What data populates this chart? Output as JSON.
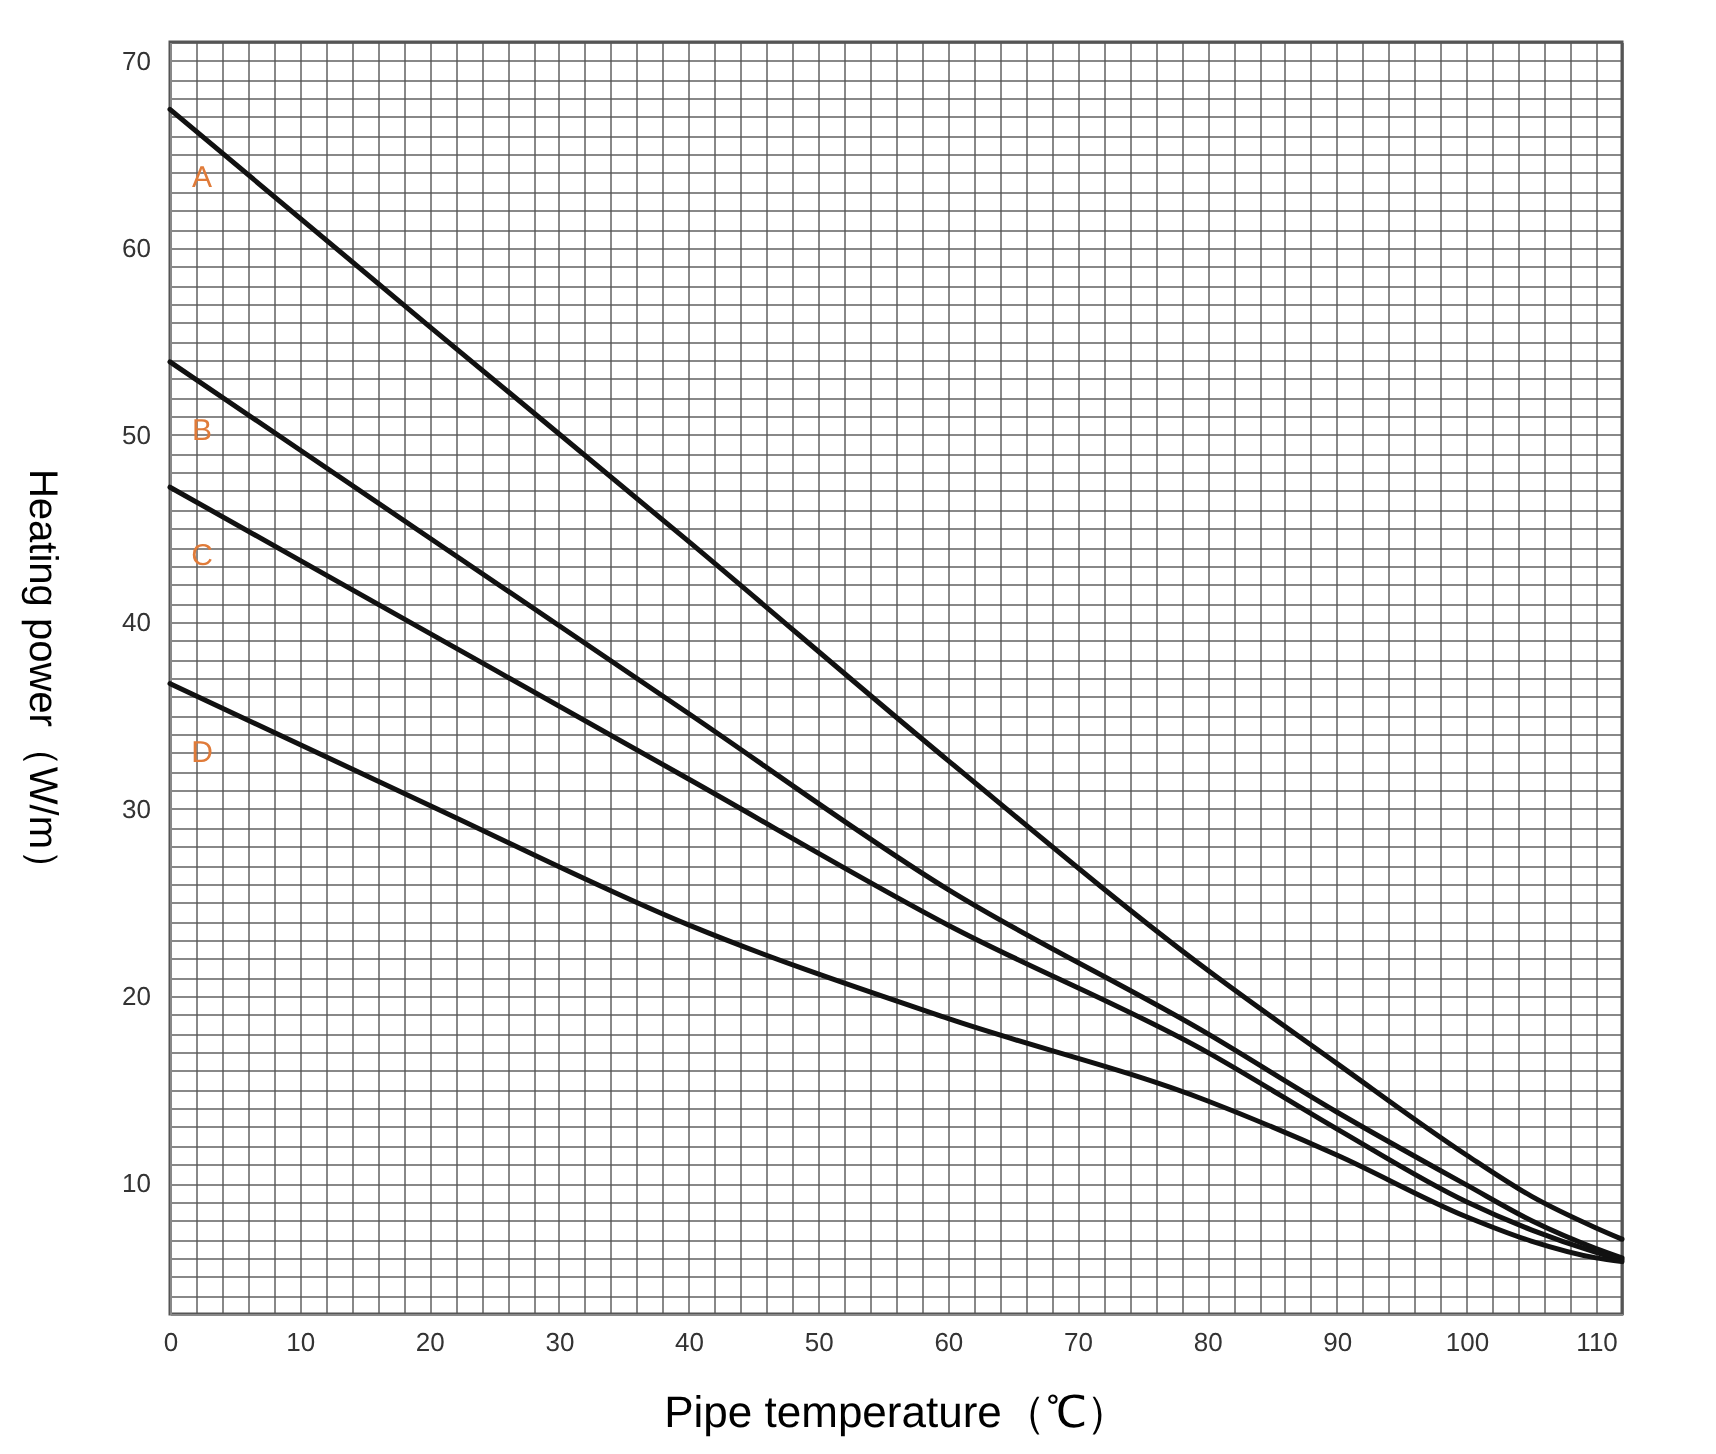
{
  "chart_data": {
    "type": "line",
    "xlabel": "Pipe temperature（℃）",
    "ylabel": "Heating power（W/m）",
    "xlim": [
      0,
      112
    ],
    "ylim": [
      3,
      71
    ],
    "xticks": [
      0,
      {
        "value": 2,
        "label": null
      },
      {
        "value": 4,
        "label": null
      },
      {
        "value": 6,
        "label": null
      },
      {
        "value": 8,
        "label": null
      },
      10,
      {
        "value": 12,
        "label": null
      },
      {
        "value": 14,
        "label": null
      },
      {
        "value": 16,
        "label": null
      },
      {
        "value": 18,
        "label": null
      },
      20,
      {
        "value": 22,
        "label": null
      },
      {
        "value": 24,
        "label": null
      },
      {
        "value": 26,
        "label": null
      },
      {
        "value": 28,
        "label": null
      },
      30,
      {
        "value": 32,
        "label": null
      },
      {
        "value": 34,
        "label": null
      },
      {
        "value": 36,
        "label": null
      },
      {
        "value": 38,
        "label": null
      },
      40,
      {
        "value": 42,
        "label": null
      },
      {
        "value": 44,
        "label": null
      },
      {
        "value": 46,
        "label": null
      },
      {
        "value": 48,
        "label": null
      },
      50,
      {
        "value": 52,
        "label": null
      },
      {
        "value": 54,
        "label": null
      },
      {
        "value": 56,
        "label": null
      },
      {
        "value": 58,
        "label": null
      },
      60,
      {
        "value": 62,
        "label": null
      },
      {
        "value": 64,
        "label": null
      },
      {
        "value": 66,
        "label": null
      },
      {
        "value": 68,
        "label": null
      },
      70,
      {
        "value": 72,
        "label": null
      },
      {
        "value": 74,
        "label": null
      },
      {
        "value": 76,
        "label": null
      },
      {
        "value": 78,
        "label": null
      },
      80,
      {
        "value": 82,
        "label": null
      },
      {
        "value": 84,
        "label": null
      },
      {
        "value": 86,
        "label": null
      },
      {
        "value": 88,
        "label": null
      },
      90,
      {
        "value": 92,
        "label": null
      },
      {
        "value": 94,
        "label": null
      },
      {
        "value": 96,
        "label": null
      },
      {
        "value": 98,
        "label": null
      },
      100,
      {
        "value": 102,
        "label": null
      },
      {
        "value": 104,
        "label": null
      },
      {
        "value": 106,
        "label": null
      },
      {
        "value": 108,
        "label": null
      },
      110,
      {
        "value": 112,
        "label": null
      }
    ],
    "yticks": [
      {
        "value": 3,
        "label": null
      },
      {
        "value": 4,
        "label": null
      },
      {
        "value": 5,
        "label": null
      },
      {
        "value": 6,
        "label": null
      },
      {
        "value": 7,
        "label": null
      },
      {
        "value": 8,
        "label": null
      },
      {
        "value": 9,
        "label": null
      },
      10,
      {
        "value": 11,
        "label": null
      },
      {
        "value": 12,
        "label": null
      },
      {
        "value": 13,
        "label": null
      },
      {
        "value": 14,
        "label": null
      },
      {
        "value": 15,
        "label": null
      },
      {
        "value": 16,
        "label": null
      },
      {
        "value": 17,
        "label": null
      },
      {
        "value": 18,
        "label": null
      },
      {
        "value": 19,
        "label": null
      },
      20,
      {
        "value": 21,
        "label": null
      },
      {
        "value": 22,
        "label": null
      },
      {
        "value": 23,
        "label": null
      },
      {
        "value": 24,
        "label": null
      },
      {
        "value": 25,
        "label": null
      },
      {
        "value": 26,
        "label": null
      },
      {
        "value": 27,
        "label": null
      },
      {
        "value": 28,
        "label": null
      },
      {
        "value": 29,
        "label": null
      },
      30,
      {
        "value": 31,
        "label": null
      },
      {
        "value": 32,
        "label": null
      },
      {
        "value": 33,
        "label": null
      },
      {
        "value": 34,
        "label": null
      },
      {
        "value": 35,
        "label": null
      },
      {
        "value": 36,
        "label": null
      },
      {
        "value": 37,
        "label": null
      },
      {
        "value": 38,
        "label": null
      },
      {
        "value": 39,
        "label": null
      },
      40,
      {
        "value": 41,
        "label": null
      },
      {
        "value": 42,
        "label": null
      },
      {
        "value": 43,
        "label": null
      },
      {
        "value": 44,
        "label": null
      },
      {
        "value": 45,
        "label": null
      },
      {
        "value": 46,
        "label": null
      },
      {
        "value": 47,
        "label": null
      },
      {
        "value": 48,
        "label": null
      },
      {
        "value": 49,
        "label": null
      },
      50,
      {
        "value": 51,
        "label": null
      },
      {
        "value": 52,
        "label": null
      },
      {
        "value": 53,
        "label": null
      },
      {
        "value": 54,
        "label": null
      },
      {
        "value": 55,
        "label": null
      },
      {
        "value": 56,
        "label": null
      },
      {
        "value": 57,
        "label": null
      },
      {
        "value": 58,
        "label": null
      },
      {
        "value": 59,
        "label": null
      },
      60,
      {
        "value": 61,
        "label": null
      },
      {
        "value": 62,
        "label": null
      },
      {
        "value": 63,
        "label": null
      },
      {
        "value": 64,
        "label": null
      },
      {
        "value": 65,
        "label": null
      },
      {
        "value": 66,
        "label": null
      },
      {
        "value": 67,
        "label": null
      },
      {
        "value": 68,
        "label": null
      },
      {
        "value": 69,
        "label": null
      },
      70,
      {
        "value": 71,
        "label": null
      }
    ],
    "grid": true,
    "line_style": "solid",
    "marker": "none",
    "x": [
      0,
      20,
      40,
      60,
      80,
      90,
      100,
      105,
      110,
      112
    ],
    "series": [
      {
        "name": "A",
        "color": "#111111",
        "values": [
          67.4,
          55.8,
          44.3,
          32.6,
          21.4,
          16.4,
          11.5,
          9.3,
          7.6,
          7.0
        ]
      },
      {
        "name": "B",
        "color": "#111111",
        "values": [
          53.9,
          44.5,
          35.1,
          25.7,
          18.0,
          13.8,
          9.9,
          8.0,
          6.5,
          6.0
        ]
      },
      {
        "name": "C",
        "color": "#111111",
        "values": [
          47.2,
          39.4,
          31.6,
          23.8,
          17.0,
          12.9,
          9.0,
          7.5,
          6.3,
          5.9
        ]
      },
      {
        "name": "D",
        "color": "#111111",
        "values": [
          36.7,
          30.2,
          23.8,
          18.8,
          14.4,
          11.5,
          8.2,
          6.9,
          6.0,
          5.8
        ]
      }
    ]
  }
}
